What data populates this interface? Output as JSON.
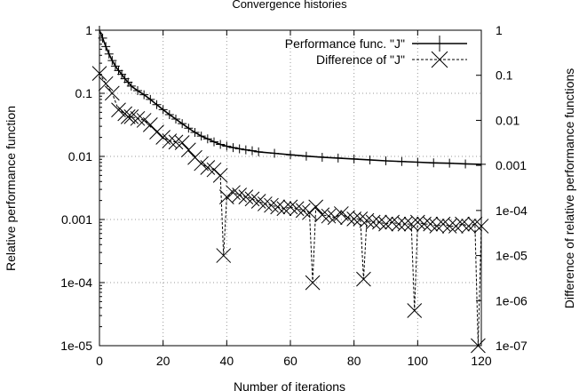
{
  "chart_data": {
    "type": "scatter",
    "title": "Convergence histories",
    "xlabel": "Number of iterations",
    "ylabel": "Relative performance function",
    "y2label": "Difference of relative performance functions",
    "xlim": [
      0,
      120
    ],
    "ylim": [
      1e-05,
      1
    ],
    "y2lim": [
      1e-07,
      1
    ],
    "yscale": "log",
    "y2scale": "log",
    "grid": true,
    "legend_position": "top-right",
    "xticks": [
      {
        "value": 0,
        "label": "0"
      },
      {
        "value": 20,
        "label": "20"
      },
      {
        "value": 40,
        "label": "40"
      },
      {
        "value": 60,
        "label": "60"
      },
      {
        "value": 80,
        "label": "80"
      },
      {
        "value": 100,
        "label": "100"
      },
      {
        "value": 120,
        "label": "120"
      }
    ],
    "yticks": [
      {
        "value": 1,
        "label": "1"
      },
      {
        "value": 0.1,
        "label": "0.1"
      },
      {
        "value": 0.01,
        "label": "0.01"
      },
      {
        "value": 0.001,
        "label": "0.001"
      },
      {
        "value": 0.0001,
        "label": "1e-04"
      },
      {
        "value": 1e-05,
        "label": "1e-05"
      }
    ],
    "y2ticks": [
      {
        "value": 1,
        "label": "1"
      },
      {
        "value": 0.1,
        "label": "0.1"
      },
      {
        "value": 0.01,
        "label": "0.01"
      },
      {
        "value": 0.001,
        "label": "0.001"
      },
      {
        "value": 0.0001,
        "label": "1e-04"
      },
      {
        "value": 1e-05,
        "label": "1e-05"
      },
      {
        "value": 1e-06,
        "label": "1e-06"
      },
      {
        "value": 1e-07,
        "label": "1e-07"
      }
    ],
    "series": [
      {
        "name": "Performance func. \"J\"",
        "axis": "left",
        "line": "solid",
        "marker": "plus",
        "x": [
          0,
          1,
          2,
          3,
          4,
          5,
          6,
          7,
          8,
          9,
          10,
          12,
          14,
          16,
          18,
          20,
          22,
          24,
          26,
          28,
          30,
          32,
          34,
          36,
          38,
          40,
          42,
          44,
          46,
          48,
          50,
          55,
          60,
          65,
          70,
          75,
          80,
          85,
          90,
          95,
          100,
          105,
          110,
          115,
          120
        ],
        "y": [
          1.0,
          0.75,
          0.55,
          0.42,
          0.33,
          0.27,
          0.23,
          0.2,
          0.17,
          0.15,
          0.13,
          0.11,
          0.095,
          0.08,
          0.066,
          0.055,
          0.046,
          0.039,
          0.033,
          0.028,
          0.024,
          0.021,
          0.019,
          0.017,
          0.0155,
          0.0145,
          0.0138,
          0.0132,
          0.0127,
          0.0123,
          0.0118,
          0.0112,
          0.0106,
          0.0101,
          0.0097,
          0.0094,
          0.0091,
          0.0088,
          0.0085,
          0.0083,
          0.0081,
          0.0079,
          0.0078,
          0.0076,
          0.0075
        ]
      },
      {
        "name": "Difference of \"J\"",
        "axis": "right",
        "line": "dashed",
        "marker": "cross",
        "x": [
          0,
          2,
          4,
          6,
          8,
          9,
          10,
          12,
          14,
          16,
          18,
          20,
          22,
          24,
          26,
          28,
          30,
          32,
          34,
          36,
          38,
          39,
          40,
          42,
          44,
          46,
          48,
          50,
          52,
          54,
          56,
          58,
          60,
          62,
          64,
          66,
          67,
          68,
          70,
          72,
          74,
          76,
          78,
          80,
          82,
          83,
          84,
          86,
          88,
          90,
          92,
          94,
          96,
          98,
          99,
          100,
          102,
          104,
          106,
          108,
          110,
          112,
          114,
          116,
          118,
          119,
          120
        ],
        "y": [
          0.11,
          0.065,
          0.04,
          0.017,
          0.014,
          0.012,
          0.012,
          0.011,
          0.01,
          0.008,
          0.0055,
          0.0042,
          0.0035,
          0.0033,
          0.0032,
          0.0022,
          0.0015,
          0.0011,
          0.0009,
          0.0008,
          0.0006,
          1e-05,
          0.0002,
          0.00025,
          0.00022,
          0.0002,
          0.00018,
          0.00016,
          0.00014,
          0.00013,
          0.00012,
          0.00011,
          0.00012,
          0.00011,
          0.0001,
          9e-05,
          2.5e-06,
          0.00012,
          8e-05,
          7.5e-05,
          7e-05,
          8.5e-05,
          7e-05,
          6.5e-05,
          6.5e-05,
          3e-06,
          6e-05,
          5.5e-05,
          5.5e-05,
          5e-05,
          5.5e-05,
          5e-05,
          5e-05,
          5e-05,
          6e-07,
          5.5e-05,
          5e-05,
          5e-05,
          4.5e-05,
          5e-05,
          4.5e-05,
          4.5e-05,
          5e-05,
          4.5e-05,
          5e-05,
          1e-07,
          4.5e-05
        ]
      }
    ]
  }
}
